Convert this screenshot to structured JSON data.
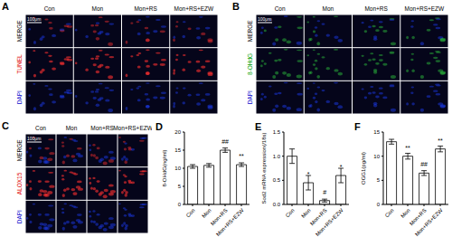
{
  "image_panels": [
    {
      "panel": "A",
      "columns": [
        "Con",
        "Mon",
        "Mon+RS",
        "Mon+RS+EZW"
      ],
      "rows": [
        "MERGE",
        "TUNEL",
        "DAPI"
      ],
      "scale_bar": "100μm"
    },
    {
      "panel": "B",
      "columns": [
        "Con",
        "Mon",
        "Mon+RS",
        "Mon+RS+EZW"
      ],
      "rows": [
        "MERGE",
        "8-OHdG",
        "DAPI"
      ],
      "scale_bar": "100μm"
    },
    {
      "panel": "C",
      "columns": [
        "Con",
        "Mon",
        "Mon+RS",
        "Mon+RS+EZW"
      ],
      "rows": [
        "MERGE",
        "ALOX15",
        "DAPI"
      ],
      "scale_bar": "100μm"
    }
  ],
  "chart_data": [
    {
      "panel": "D",
      "type": "bar",
      "y_label": "8-OHdG(ng/ml)",
      "categories": [
        "Con",
        "Mon",
        "Mon+RS",
        "Mon+RS+EZW"
      ],
      "values": [
        10.5,
        10.8,
        15,
        11
      ],
      "errors": [
        0.5,
        0.5,
        0.6,
        0.5
      ],
      "annotations": [
        null,
        null,
        "##",
        "**"
      ],
      "color": "#ffffff",
      "ylim": [
        0,
        20
      ],
      "yticks": [
        0,
        5,
        10,
        15,
        20
      ]
    },
    {
      "panel": "E",
      "type": "bar",
      "y_label": "Sod2 mRNA expression(/18s)",
      "categories": [
        "Con",
        "Mon",
        "Mon+RS",
        "Mon+RS+EZW"
      ],
      "values": [
        1.0,
        0.45,
        0.08,
        0.6
      ],
      "errors": [
        0.15,
        0.15,
        0.03,
        0.15
      ],
      "annotations": [
        null,
        "*",
        "#",
        "*"
      ],
      "color": "#ffffff",
      "ylim": [
        0,
        1.5
      ],
      "yticks": [
        {
          "value": 0,
          "label": "0.0"
        },
        {
          "value": 0.5,
          "label": "0.5"
        },
        {
          "value": 1,
          "label": "1.0"
        },
        {
          "value": 1.5,
          "label": "1.5"
        }
      ]
    },
    {
      "panel": "F",
      "type": "bar",
      "y_label": "OGG1(pg/ml)",
      "categories": [
        "Con",
        "Mon",
        "Mon+RS",
        "Mon+RS+EZW"
      ],
      "values": [
        13,
        10,
        6.5,
        11.5
      ],
      "errors": [
        0.5,
        0.6,
        0.5,
        0.6
      ],
      "annotations": [
        null,
        "**",
        "##",
        "**"
      ],
      "color": "#ffffff",
      "ylim": [
        0,
        15
      ],
      "yticks": [
        0,
        5,
        10,
        15
      ]
    }
  ]
}
